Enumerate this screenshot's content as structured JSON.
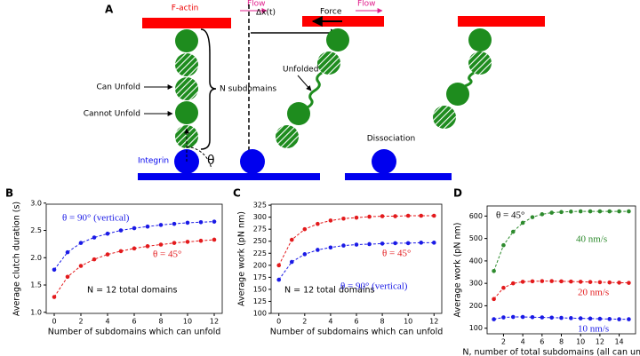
{
  "diagram": {
    "panel": "A",
    "factin": "F-actin",
    "flow1": "Flow",
    "flow2": "Flow",
    "can_unfold": "Can Unfold",
    "cannot_unfold": "Cannot Unfold",
    "n_subdomains": "N subdomains",
    "integrin": "Integrin",
    "theta": "θ",
    "dx": "Δx(t)",
    "force": "Force",
    "unfolded": "Unfolded",
    "dissociation": "Dissociation"
  },
  "chart_data": [
    {
      "type": "line",
      "panel": "B",
      "ylabel": "Average clutch duration (s)",
      "xlabel": "Number of subdomains which can unfold",
      "annotation": "N = 12 total domains",
      "x": [
        0,
        1,
        2,
        3,
        4,
        5,
        6,
        7,
        8,
        9,
        10,
        11,
        12
      ],
      "xlim": [
        -0.6,
        12.6
      ],
      "xticks": [
        0,
        2,
        4,
        6,
        8,
        10,
        12
      ],
      "ylim": [
        0.98,
        2.98
      ],
      "yticks": [
        {
          "value": 1.0,
          "label": "1.0"
        },
        {
          "value": 1.5,
          "label": "1.5"
        },
        {
          "value": 2.0,
          "label": "2.0"
        },
        {
          "value": 2.5,
          "label": "2.5"
        },
        {
          "value": 3.0,
          "label": "3.0"
        }
      ],
      "series": [
        {
          "name": "θ = 90° (vertical)",
          "color": "#1a1ae6",
          "values": [
            1.78,
            2.1,
            2.27,
            2.37,
            2.44,
            2.5,
            2.54,
            2.57,
            2.6,
            2.62,
            2.64,
            2.65,
            2.66
          ]
        },
        {
          "name": "θ = 45°",
          "color": "#e31a1c",
          "values": [
            1.28,
            1.65,
            1.85,
            1.97,
            2.06,
            2.12,
            2.17,
            2.21,
            2.24,
            2.27,
            2.29,
            2.31,
            2.33
          ]
        }
      ]
    },
    {
      "type": "line",
      "panel": "C",
      "ylabel": "Average work (pN nm)",
      "xlabel": "Number of subdomains which can unfold",
      "annotation": "N = 12 total domains",
      "x": [
        0,
        1,
        2,
        3,
        4,
        5,
        6,
        7,
        8,
        9,
        10,
        11,
        12
      ],
      "xlim": [
        -0.6,
        12.6
      ],
      "xticks": [
        0,
        2,
        4,
        6,
        8,
        10,
        12
      ],
      "ylim": [
        100,
        327
      ],
      "yticks": [
        100,
        125,
        150,
        175,
        200,
        225,
        250,
        275,
        300,
        325
      ],
      "series": [
        {
          "name": "θ = 45°",
          "color": "#e31a1c",
          "values": [
            200,
            253,
            275,
            286,
            293,
            297,
            299,
            301,
            302,
            302,
            303,
            303,
            303
          ]
        },
        {
          "name": "θ = 90° (vertical)",
          "color": "#1a1ae6",
          "values": [
            170,
            207,
            223,
            232,
            237,
            241,
            243,
            244,
            245,
            246,
            246,
            247,
            247
          ]
        }
      ]
    },
    {
      "type": "line",
      "panel": "D",
      "ylabel": "Average work (pN nm)",
      "xlabel": "N, number of total subdomains (all can unfold)",
      "annotation": "θ = 45°",
      "x": [
        1,
        2,
        3,
        4,
        5,
        6,
        7,
        8,
        9,
        10,
        11,
        12,
        13,
        14,
        15
      ],
      "xlim": [
        0.3,
        15.7
      ],
      "xticks": [
        2,
        4,
        6,
        8,
        10,
        12,
        14
      ],
      "ylim": [
        75,
        645
      ],
      "yticks": [
        100,
        200,
        300,
        400,
        500,
        600
      ],
      "series": [
        {
          "name": "40 nm/s",
          "color": "#2e8b2e",
          "values": [
            355,
            470,
            530,
            570,
            595,
            608,
            615,
            618,
            620,
            621,
            621,
            621,
            621,
            621,
            621
          ]
        },
        {
          "name": "20 nm/s",
          "color": "#e31a1c",
          "values": [
            230,
            280,
            300,
            307,
            309,
            310,
            310,
            309,
            308,
            307,
            306,
            305,
            304,
            303,
            302
          ]
        },
        {
          "name": "10 nm/s",
          "color": "#1a1ae6",
          "values": [
            140,
            148,
            150,
            150,
            149,
            148,
            147,
            146,
            145,
            144,
            143,
            142,
            141,
            140,
            140
          ]
        }
      ]
    }
  ]
}
